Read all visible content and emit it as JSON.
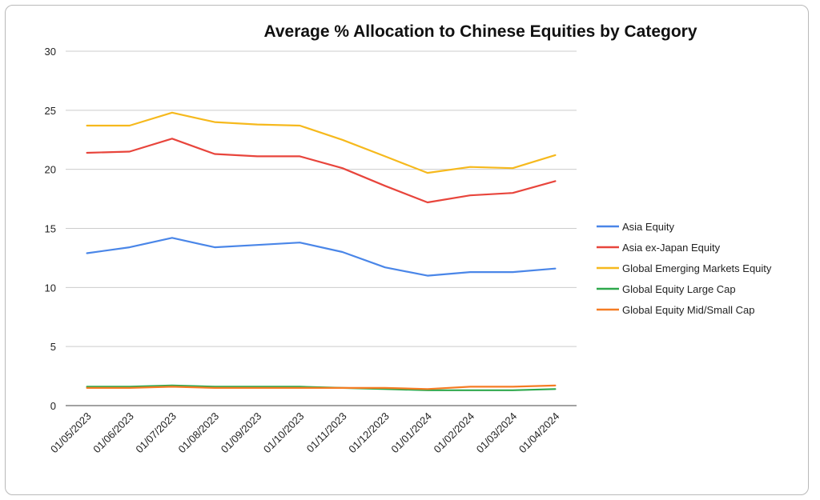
{
  "chart_data": {
    "type": "line",
    "title": "Average % Allocation to Chinese Equities by Category",
    "xlabel": "",
    "ylabel": "",
    "x": [
      "01/05/2023",
      "01/06/2023",
      "01/07/2023",
      "01/08/2023",
      "01/09/2023",
      "01/10/2023",
      "01/11/2023",
      "01/12/2023",
      "01/01/2024",
      "01/02/2024",
      "01/03/2024",
      "01/04/2024"
    ],
    "ylim": [
      0,
      30
    ],
    "yticks": [
      "0",
      "5",
      "10",
      "15",
      "20",
      "25",
      "30"
    ],
    "grid": true,
    "legend_position": "right",
    "series": [
      {
        "name": "Asia Equity",
        "color": "#4a86e8",
        "values": [
          12.9,
          13.4,
          14.2,
          13.4,
          13.6,
          13.8,
          13.0,
          11.7,
          11.0,
          11.3,
          11.3,
          11.6
        ]
      },
      {
        "name": "Asia ex-Japan Equity",
        "color": "#e8453c",
        "values": [
          21.4,
          21.5,
          22.6,
          21.3,
          21.1,
          21.1,
          20.1,
          18.6,
          17.2,
          17.8,
          18.0,
          19.0
        ]
      },
      {
        "name": "Global Emerging Markets Equity",
        "color": "#f6b91d",
        "values": [
          23.7,
          23.7,
          24.8,
          24.0,
          23.8,
          23.7,
          22.5,
          21.1,
          19.7,
          20.2,
          20.1,
          21.2
        ]
      },
      {
        "name": "Global Equity Large Cap",
        "color": "#2ea84c",
        "values": [
          1.6,
          1.6,
          1.7,
          1.6,
          1.6,
          1.6,
          1.5,
          1.4,
          1.3,
          1.3,
          1.3,
          1.4
        ]
      },
      {
        "name": "Global Equity Mid/Small Cap",
        "color": "#f57c24",
        "values": [
          1.5,
          1.5,
          1.6,
          1.5,
          1.5,
          1.5,
          1.5,
          1.5,
          1.4,
          1.6,
          1.6,
          1.7
        ]
      }
    ]
  }
}
